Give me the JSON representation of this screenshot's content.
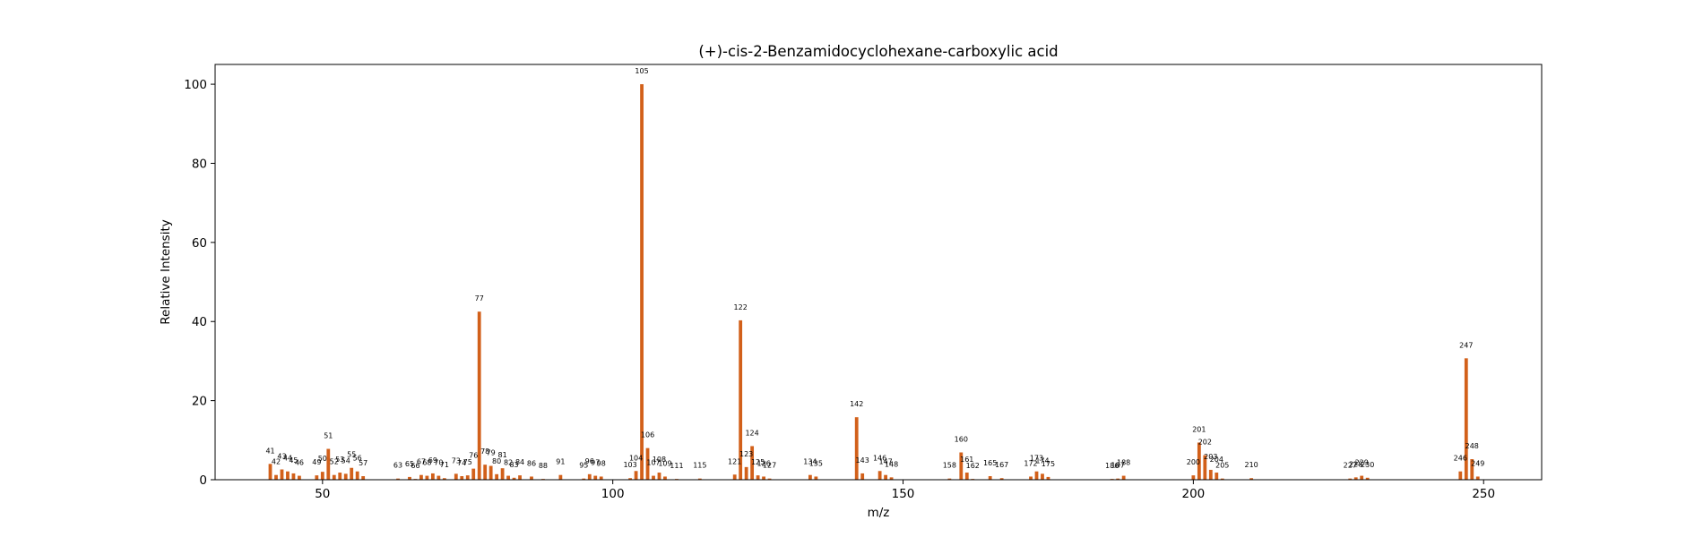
{
  "chart_data": {
    "type": "bar",
    "title": "(+)-cis-2-Benzamidocyclohexane-carboxylic acid",
    "xlabel": "m/z",
    "ylabel": "Relative Intensity",
    "xlim": [
      31.5,
      260
    ],
    "ylim": [
      0,
      105
    ],
    "xticks": [
      50,
      100,
      150,
      200,
      250
    ],
    "yticks": [
      0,
      20,
      40,
      60,
      80,
      100
    ],
    "grid": false,
    "bar_color": "#d2601a",
    "labeled_values": [
      41,
      42,
      43,
      44,
      45,
      46,
      49,
      50,
      51,
      52,
      53,
      54,
      55,
      56,
      57,
      63,
      65,
      66,
      67,
      68,
      69,
      70,
      71,
      73,
      74,
      75,
      76,
      77,
      78,
      79,
      80,
      81,
      82,
      83,
      84,
      86,
      88,
      91,
      95,
      96,
      97,
      98,
      103,
      104,
      105,
      106,
      107,
      108,
      109,
      111,
      115,
      121,
      122,
      123,
      124,
      125,
      126,
      127,
      134,
      135,
      142,
      143,
      146,
      147,
      148,
      158,
      160,
      161,
      162,
      165,
      167,
      172,
      173,
      174,
      175,
      186,
      187,
      188,
      200,
      201,
      202,
      203,
      204,
      205,
      210,
      227,
      228,
      229,
      230,
      246,
      247,
      248,
      249
    ],
    "peaks": [
      {
        "mz": 41,
        "intensity": 4.0
      },
      {
        "mz": 42,
        "intensity": 1.2
      },
      {
        "mz": 43,
        "intensity": 2.6
      },
      {
        "mz": 44,
        "intensity": 2.1
      },
      {
        "mz": 45,
        "intensity": 1.6
      },
      {
        "mz": 46,
        "intensity": 1.0
      },
      {
        "mz": 49,
        "intensity": 1.1
      },
      {
        "mz": 50,
        "intensity": 2.0
      },
      {
        "mz": 51,
        "intensity": 7.8
      },
      {
        "mz": 52,
        "intensity": 1.2
      },
      {
        "mz": 53,
        "intensity": 1.8
      },
      {
        "mz": 54,
        "intensity": 1.5
      },
      {
        "mz": 55,
        "intensity": 3.0
      },
      {
        "mz": 56,
        "intensity": 2.1
      },
      {
        "mz": 57,
        "intensity": 0.9
      },
      {
        "mz": 63,
        "intensity": 0.3
      },
      {
        "mz": 65,
        "intensity": 0.7
      },
      {
        "mz": 66,
        "intensity": 0.2
      },
      {
        "mz": 67,
        "intensity": 1.2
      },
      {
        "mz": 68,
        "intensity": 1.0
      },
      {
        "mz": 69,
        "intensity": 1.6
      },
      {
        "mz": 70,
        "intensity": 1.0
      },
      {
        "mz": 71,
        "intensity": 0.4
      },
      {
        "mz": 73,
        "intensity": 1.5
      },
      {
        "mz": 74,
        "intensity": 0.9
      },
      {
        "mz": 75,
        "intensity": 1.1
      },
      {
        "mz": 76,
        "intensity": 2.8
      },
      {
        "mz": 77,
        "intensity": 42.5
      },
      {
        "mz": 78,
        "intensity": 3.8
      },
      {
        "mz": 79,
        "intensity": 3.5
      },
      {
        "mz": 80,
        "intensity": 1.4
      },
      {
        "mz": 81,
        "intensity": 2.9
      },
      {
        "mz": 82,
        "intensity": 1.0
      },
      {
        "mz": 83,
        "intensity": 0.5
      },
      {
        "mz": 84,
        "intensity": 1.1
      },
      {
        "mz": 86,
        "intensity": 0.8
      },
      {
        "mz": 88,
        "intensity": 0.2
      },
      {
        "mz": 91,
        "intensity": 1.2
      },
      {
        "mz": 95,
        "intensity": 0.3
      },
      {
        "mz": 96,
        "intensity": 1.4
      },
      {
        "mz": 97,
        "intensity": 1.0
      },
      {
        "mz": 98,
        "intensity": 0.8
      },
      {
        "mz": 103,
        "intensity": 0.4
      },
      {
        "mz": 104,
        "intensity": 2.2
      },
      {
        "mz": 105,
        "intensity": 100.0
      },
      {
        "mz": 106,
        "intensity": 8.0
      },
      {
        "mz": 107,
        "intensity": 1.0
      },
      {
        "mz": 108,
        "intensity": 1.8
      },
      {
        "mz": 109,
        "intensity": 0.8
      },
      {
        "mz": 111,
        "intensity": 0.2
      },
      {
        "mz": 115,
        "intensity": 0.3
      },
      {
        "mz": 121,
        "intensity": 1.3
      },
      {
        "mz": 122,
        "intensity": 40.3
      },
      {
        "mz": 123,
        "intensity": 3.2
      },
      {
        "mz": 124,
        "intensity": 8.5
      },
      {
        "mz": 125,
        "intensity": 1.1
      },
      {
        "mz": 126,
        "intensity": 0.8
      },
      {
        "mz": 127,
        "intensity": 0.3
      },
      {
        "mz": 134,
        "intensity": 1.2
      },
      {
        "mz": 135,
        "intensity": 0.8
      },
      {
        "mz": 142,
        "intensity": 15.8
      },
      {
        "mz": 143,
        "intensity": 1.6
      },
      {
        "mz": 146,
        "intensity": 2.2
      },
      {
        "mz": 147,
        "intensity": 1.2
      },
      {
        "mz": 148,
        "intensity": 0.6
      },
      {
        "mz": 158,
        "intensity": 0.3
      },
      {
        "mz": 160,
        "intensity": 6.9
      },
      {
        "mz": 161,
        "intensity": 1.8
      },
      {
        "mz": 162,
        "intensity": 0.2
      },
      {
        "mz": 165,
        "intensity": 0.9
      },
      {
        "mz": 167,
        "intensity": 0.4
      },
      {
        "mz": 172,
        "intensity": 0.8
      },
      {
        "mz": 173,
        "intensity": 2.1
      },
      {
        "mz": 174,
        "intensity": 1.5
      },
      {
        "mz": 175,
        "intensity": 0.7
      },
      {
        "mz": 186,
        "intensity": 0.2
      },
      {
        "mz": 187,
        "intensity": 0.3
      },
      {
        "mz": 188,
        "intensity": 1.0
      },
      {
        "mz": 200,
        "intensity": 1.1
      },
      {
        "mz": 201,
        "intensity": 9.4
      },
      {
        "mz": 202,
        "intensity": 6.2
      },
      {
        "mz": 203,
        "intensity": 2.5
      },
      {
        "mz": 204,
        "intensity": 1.8
      },
      {
        "mz": 205,
        "intensity": 0.3
      },
      {
        "mz": 210,
        "intensity": 0.4
      },
      {
        "mz": 227,
        "intensity": 0.3
      },
      {
        "mz": 228,
        "intensity": 0.6
      },
      {
        "mz": 229,
        "intensity": 1.0
      },
      {
        "mz": 230,
        "intensity": 0.5
      },
      {
        "mz": 246,
        "intensity": 2.1
      },
      {
        "mz": 247,
        "intensity": 30.7
      },
      {
        "mz": 248,
        "intensity": 5.2
      },
      {
        "mz": 249,
        "intensity": 0.8
      }
    ]
  }
}
